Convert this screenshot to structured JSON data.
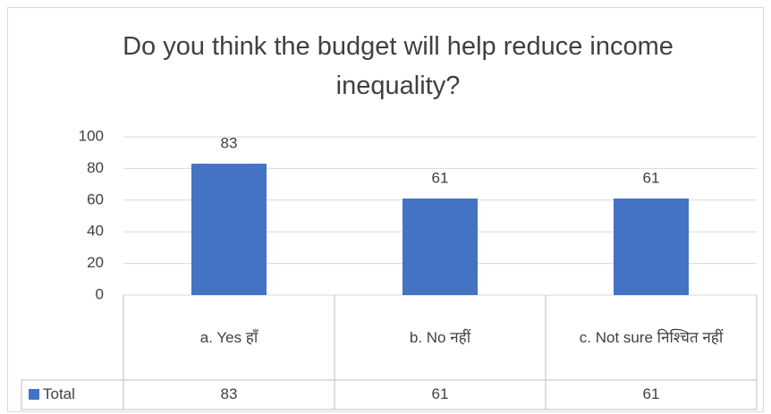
{
  "chart_data": {
    "type": "bar",
    "title": "Do you think the budget will help reduce income inequality?",
    "categories": [
      "a.  Yes हाँ",
      "b.  No नहीं",
      "c.  Not sure निश्चित नहीं"
    ],
    "series": [
      {
        "name": "Total",
        "color": "#4472c4",
        "values": [
          83,
          61,
          61
        ]
      }
    ],
    "ylim": [
      0,
      100
    ],
    "yticks": [
      0,
      20,
      40,
      60,
      80,
      100
    ],
    "grid": true
  }
}
